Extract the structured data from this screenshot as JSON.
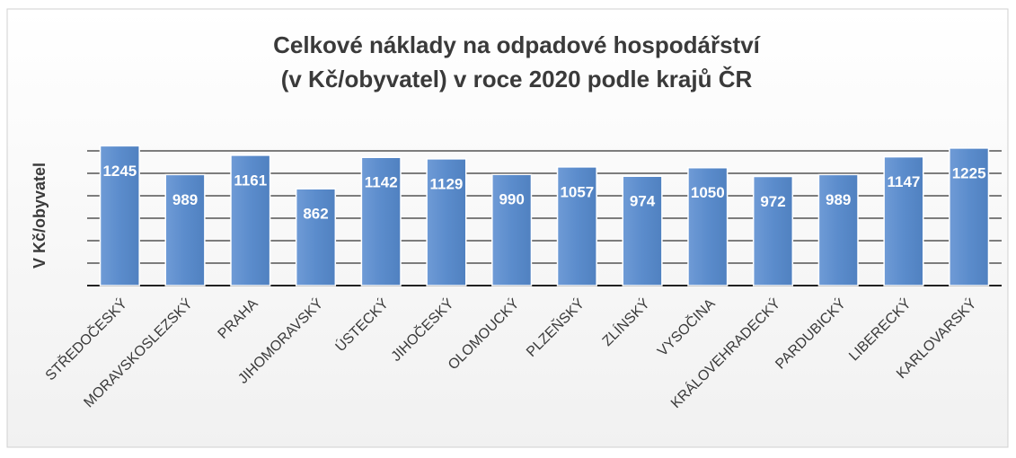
{
  "chart_data": {
    "type": "bar",
    "title": [
      "Celkové náklady na odpadové hospodářství",
      "(v Kč/obyvatel) v roce 2020 podle krajů ČR"
    ],
    "ylabel": "V Kč/obyvatel",
    "categories": [
      "STŘEDOČESKÝ",
      "MORAVSKOSLEZSKÝ",
      "PRAHA",
      "JIHOMORAVSKÝ",
      "ÚSTECKÝ",
      "JIHOČESKÝ",
      "OLOMOUCKÝ",
      "PLZEŇSKÝ",
      "ZLÍNSKÝ",
      "VYSOČINA",
      "KRÁLOVEHRADECKÝ",
      "PARDUBICKÝ",
      "LIBERECKÝ",
      "KARLOVARSKÝ"
    ],
    "values": [
      1245,
      989,
      1161,
      862,
      1142,
      1129,
      990,
      1057,
      974,
      1050,
      972,
      989,
      1147,
      1225
    ],
    "color": "#5b8ccc",
    "ylim": [
      0,
      1400
    ],
    "yticks": [
      0,
      200,
      400,
      600,
      800,
      1000,
      1200
    ],
    "grid": true
  }
}
